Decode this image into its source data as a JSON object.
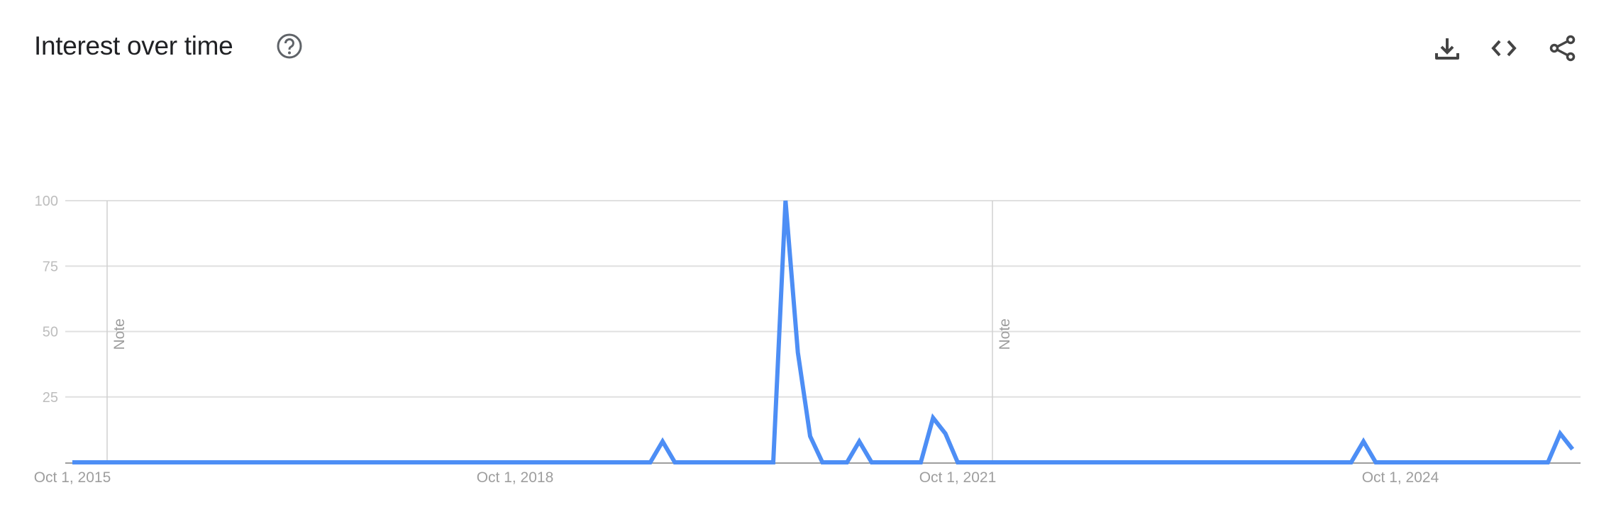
{
  "header": {
    "title": "Interest over time",
    "icons": [
      "help-icon",
      "download-icon",
      "embed-code-icon",
      "share-icon"
    ]
  },
  "chart_data": {
    "type": "line",
    "title": "Interest over time",
    "xlabel": "",
    "ylabel": "",
    "ylim": [
      0,
      100
    ],
    "yticks": [
      "100",
      "75",
      "50",
      "25"
    ],
    "xtick_labels": [
      {
        "label": "Oct 1, 2015",
        "x": "2015-10"
      },
      {
        "label": "Oct 1, 2018",
        "x": "2018-10"
      },
      {
        "label": "Oct 1, 2021",
        "x": "2021-10"
      },
      {
        "label": "Oct 1, 2024",
        "x": "2024-10"
      }
    ],
    "annotations": [
      {
        "label": "Note",
        "x": "2016-01"
      },
      {
        "label": "Note",
        "x": "2022-01"
      }
    ],
    "grid": true,
    "color": "#4d8ef5",
    "x": [
      "2015-10",
      "2015-11",
      "2015-12",
      "2016-01",
      "2016-02",
      "2016-03",
      "2016-04",
      "2016-05",
      "2016-06",
      "2016-07",
      "2016-08",
      "2016-09",
      "2016-10",
      "2016-11",
      "2016-12",
      "2017-01",
      "2017-02",
      "2017-03",
      "2017-04",
      "2017-05",
      "2017-06",
      "2017-07",
      "2017-08",
      "2017-09",
      "2017-10",
      "2017-11",
      "2017-12",
      "2018-01",
      "2018-02",
      "2018-03",
      "2018-04",
      "2018-05",
      "2018-06",
      "2018-07",
      "2018-08",
      "2018-09",
      "2018-10",
      "2018-11",
      "2018-12",
      "2019-01",
      "2019-02",
      "2019-03",
      "2019-04",
      "2019-05",
      "2019-06",
      "2019-07",
      "2019-08",
      "2019-09",
      "2019-10",
      "2019-11",
      "2019-12",
      "2020-01",
      "2020-02",
      "2020-03",
      "2020-04",
      "2020-05",
      "2020-06",
      "2020-07",
      "2020-08",
      "2020-09",
      "2020-10",
      "2020-11",
      "2020-12",
      "2021-01",
      "2021-02",
      "2021-03",
      "2021-04",
      "2021-05",
      "2021-06",
      "2021-07",
      "2021-08",
      "2021-09",
      "2021-10",
      "2021-11",
      "2021-12",
      "2022-01",
      "2022-02",
      "2022-03",
      "2022-04",
      "2022-05",
      "2022-06",
      "2022-07",
      "2022-08",
      "2022-09",
      "2022-10",
      "2022-11",
      "2022-12",
      "2023-01",
      "2023-02",
      "2023-03",
      "2023-04",
      "2023-05",
      "2023-06",
      "2023-07",
      "2023-08",
      "2023-09",
      "2023-10",
      "2023-11",
      "2023-12",
      "2024-01",
      "2024-02",
      "2024-03",
      "2024-04",
      "2024-05",
      "2024-06",
      "2024-07",
      "2024-08",
      "2024-09",
      "2024-10",
      "2024-11",
      "2024-12",
      "2025-01",
      "2025-02",
      "2025-03",
      "2025-04",
      "2025-05",
      "2025-06",
      "2025-07",
      "2025-08",
      "2025-09",
      "2025-10",
      "2025-11",
      "2025-12"
    ],
    "values": [
      0,
      0,
      0,
      0,
      0,
      0,
      0,
      0,
      0,
      0,
      0,
      0,
      0,
      0,
      0,
      0,
      0,
      0,
      0,
      0,
      0,
      0,
      0,
      0,
      0,
      0,
      0,
      0,
      0,
      0,
      0,
      0,
      0,
      0,
      0,
      0,
      0,
      0,
      0,
      0,
      0,
      0,
      0,
      0,
      0,
      0,
      0,
      0,
      8,
      0,
      0,
      0,
      0,
      0,
      0,
      0,
      0,
      0,
      100,
      42,
      10,
      0,
      0,
      0,
      8,
      0,
      0,
      0,
      0,
      0,
      17,
      11,
      0,
      0,
      0,
      0,
      0,
      0,
      0,
      0,
      0,
      0,
      0,
      0,
      0,
      0,
      0,
      0,
      0,
      0,
      0,
      0,
      0,
      0,
      0,
      0,
      0,
      0,
      0,
      0,
      0,
      0,
      0,
      0,
      0,
      8,
      0,
      0,
      0,
      0,
      0,
      0,
      0,
      0,
      0,
      0,
      0,
      0,
      0,
      0,
      0,
      11,
      5
    ]
  }
}
